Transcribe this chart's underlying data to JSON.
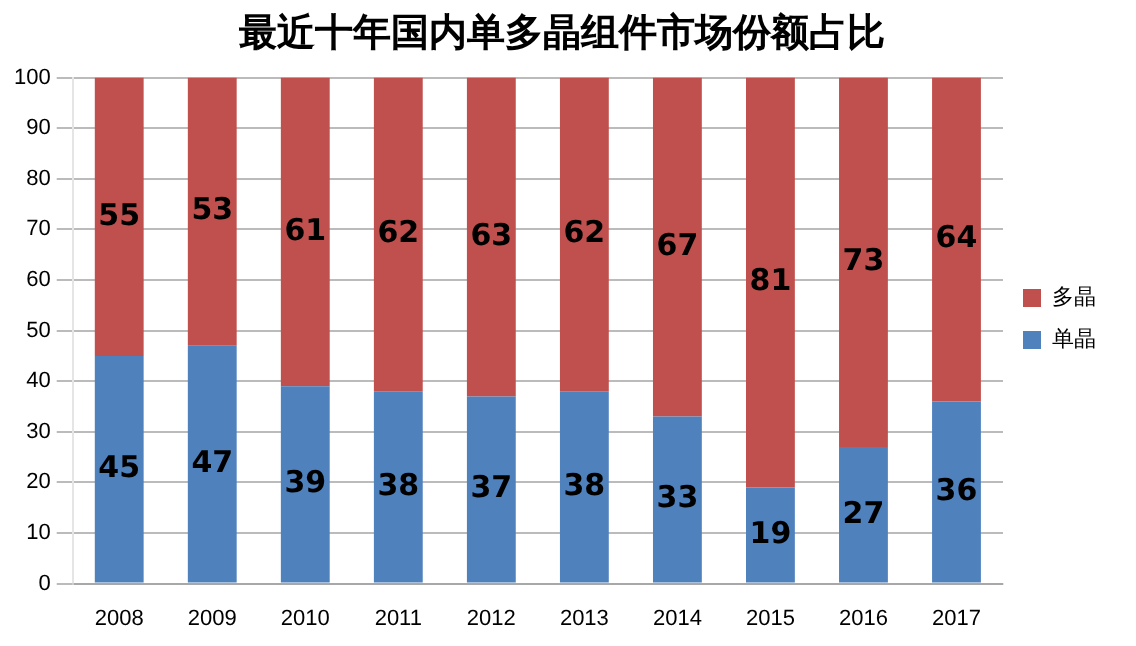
{
  "chart_data": {
    "type": "bar",
    "title": "最近十年国内单多晶组件市场份额占比",
    "categories": [
      "2008",
      "2009",
      "2010",
      "2011",
      "2012",
      "2013",
      "2014",
      "2015",
      "2016",
      "2017"
    ],
    "series": [
      {
        "name": "单晶",
        "color": "#4f81bd",
        "values": [
          45,
          47,
          39,
          38,
          37,
          38,
          33,
          19,
          27,
          36
        ]
      },
      {
        "name": "多晶",
        "color": "#c0504d",
        "values": [
          55,
          53,
          61,
          62,
          63,
          62,
          67,
          81,
          73,
          64
        ]
      }
    ],
    "stacked": true,
    "ylim": [
      0,
      100
    ],
    "yticks": [
      0,
      10,
      20,
      30,
      40,
      50,
      60,
      70,
      80,
      90,
      100
    ],
    "grid": "y",
    "legend": "right",
    "data_labels": true
  }
}
